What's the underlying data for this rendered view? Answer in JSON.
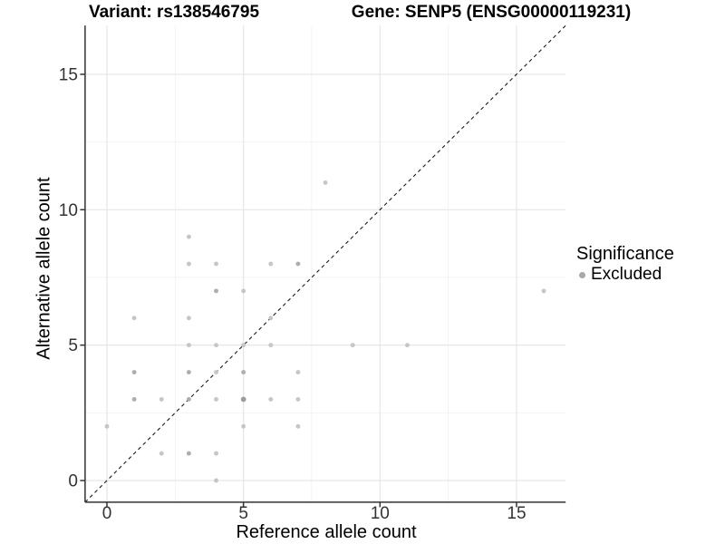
{
  "page": {
    "background": "#ffffff"
  },
  "colors": {
    "point_shades": {
      "1": "#c6c6c6",
      "2": "#aeaeae",
      "3": "#9c9c9c"
    },
    "legend_dot": "#a8a8a8",
    "grid_major": "#e6e6e6",
    "grid_minor": "#f2f2f2",
    "axis_line": "#333333",
    "tick_mark": "#333333",
    "tick_text": "#333333",
    "identity_line": "#1a1a1a"
  },
  "chart_data": {
    "type": "scatter",
    "title_left": "Variant: rs138546795",
    "title_right": "Gene: SENP5 (ENSG00000119231)",
    "xlabel": "Reference allele count",
    "ylabel": "Alternative allele count",
    "xlim": [
      -0.8,
      16.8
    ],
    "ylim": [
      -0.8,
      16.8
    ],
    "x_ticks": [
      0,
      5,
      10,
      15
    ],
    "y_ticks": [
      0,
      5,
      10,
      15
    ],
    "x_minor_ticks": [
      2.5,
      7.5,
      12.5
    ],
    "y_minor_ticks": [
      2.5,
      7.5,
      12.5
    ],
    "grid": true,
    "identity_line": {
      "show": true,
      "style": "dashed",
      "slope": 1,
      "intercept": 0
    },
    "legend": {
      "title": "Significance",
      "position": "right",
      "entries": [
        "Excluded"
      ]
    },
    "point_format": [
      "x",
      "y",
      "shade(1=light,2=darker-overlap,3=darkest-overlap)"
    ],
    "series": [
      {
        "name": "Excluded",
        "points": [
          [
            0,
            2,
            1
          ],
          [
            1,
            3,
            2
          ],
          [
            1,
            4,
            2
          ],
          [
            1,
            6,
            1
          ],
          [
            2,
            1,
            1
          ],
          [
            2,
            3,
            1
          ],
          [
            3,
            1,
            2
          ],
          [
            3,
            3,
            2
          ],
          [
            3,
            4,
            2
          ],
          [
            3,
            5,
            1
          ],
          [
            3,
            6,
            1
          ],
          [
            3,
            8,
            1
          ],
          [
            3,
            9,
            1
          ],
          [
            4,
            0,
            1
          ],
          [
            4,
            1,
            1
          ],
          [
            4,
            3,
            1
          ],
          [
            4,
            4,
            1
          ],
          [
            4,
            5,
            1
          ],
          [
            4,
            7,
            2
          ],
          [
            4,
            8,
            1
          ],
          [
            5,
            2,
            1
          ],
          [
            5,
            3,
            3
          ],
          [
            5,
            4,
            2
          ],
          [
            5,
            5,
            1
          ],
          [
            5,
            7,
            1
          ],
          [
            6,
            3,
            1
          ],
          [
            6,
            5,
            1
          ],
          [
            6,
            6,
            1
          ],
          [
            6,
            8,
            1
          ],
          [
            7,
            2,
            1
          ],
          [
            7,
            3,
            1
          ],
          [
            7,
            4,
            1
          ],
          [
            7,
            8,
            2
          ],
          [
            8,
            11,
            1
          ],
          [
            9,
            5,
            1
          ],
          [
            11,
            5,
            1
          ],
          [
            16,
            7,
            1
          ]
        ]
      }
    ]
  }
}
